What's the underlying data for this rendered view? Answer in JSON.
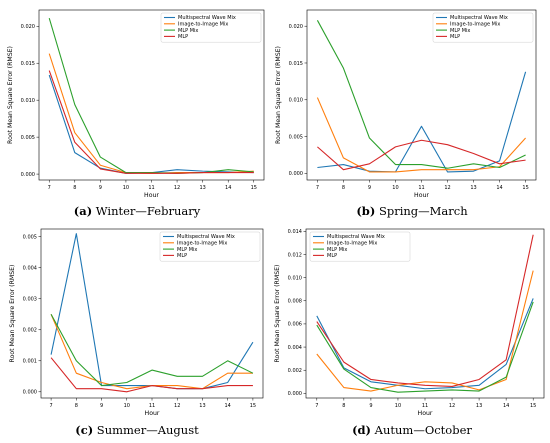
{
  "chart_data": [
    {
      "type": "line",
      "caption_letter": "(a)",
      "caption_text": "Winter—February",
      "xlabel": "Hour",
      "ylabel": "Root Mean Square Error (RMSE)",
      "x": [
        7,
        8,
        9,
        10,
        11,
        12,
        13,
        14,
        15
      ],
      "xlim": [
        6.6,
        15.4
      ],
      "ylim": [
        -0.0008,
        0.0222
      ],
      "yticks": [
        0,
        0.005,
        0.01,
        0.015,
        0.02
      ],
      "ytick_labels": [
        "0.000",
        "0.005",
        "0.010",
        "0.015",
        "0.020"
      ],
      "legend_position": "top-right",
      "series": [
        {
          "name": "Multispectral Wave Mix",
          "color": "#1f77b4",
          "values": [
            0.0134,
            0.0029,
            0.0008,
            0.0001,
            0.0002,
            0.0006,
            0.0004,
            0.0003,
            0.0002
          ]
        },
        {
          "name": "Image-to-Image Mix",
          "color": "#ff7f0e",
          "values": [
            0.0163,
            0.0056,
            0.0012,
            0.0002,
            0.0001,
            0.0002,
            0.0002,
            0.0002,
            0.0004
          ]
        },
        {
          "name": "MLP Mix",
          "color": "#2ca02c",
          "values": [
            0.0211,
            0.0094,
            0.0023,
            0.0002,
            0.0002,
            0.0001,
            0.0002,
            0.0006,
            0.0003
          ]
        },
        {
          "name": "MLP",
          "color": "#d62728",
          "values": [
            0.014,
            0.0043,
            0.0007,
            0.0001,
            0.0001,
            0.0001,
            0.0002,
            0.0002,
            0.0002
          ]
        }
      ]
    },
    {
      "type": "line",
      "caption_letter": "(b)",
      "caption_text": "Spring—March",
      "xlabel": "Hour",
      "ylabel": "Root Mean Square Error (RMSE)",
      "x": [
        7,
        8,
        9,
        10,
        11,
        12,
        13,
        14,
        15
      ],
      "xlim": [
        6.6,
        15.4
      ],
      "ylim": [
        -0.0009,
        0.0222
      ],
      "yticks": [
        0,
        0.005,
        0.01,
        0.015,
        0.02
      ],
      "ytick_labels": [
        "0.000",
        "0.005",
        "0.010",
        "0.015",
        "0.020"
      ],
      "legend_position": "top-right",
      "series": [
        {
          "name": "Multispectral Wave Mix",
          "color": "#1f77b4",
          "values": [
            0.0008,
            0.0012,
            0.0003,
            0.0002,
            0.0064,
            0.0002,
            0.0003,
            0.0017,
            0.0138
          ]
        },
        {
          "name": "Image-to-Image Mix",
          "color": "#ff7f0e",
          "values": [
            0.0103,
            0.0021,
            0.0002,
            0.0002,
            0.0005,
            0.0005,
            0.0005,
            0.0009,
            0.0048
          ]
        },
        {
          "name": "MLP Mix",
          "color": "#2ca02c",
          "values": [
            0.0208,
            0.0143,
            0.0048,
            0.0012,
            0.0012,
            0.0007,
            0.0013,
            0.0008,
            0.0025
          ]
        },
        {
          "name": "MLP",
          "color": "#d62728",
          "values": [
            0.0036,
            0.0005,
            0.0013,
            0.0036,
            0.0045,
            0.0039,
            0.0027,
            0.0013,
            0.0018
          ]
        }
      ]
    },
    {
      "type": "line",
      "caption_letter": "(c)",
      "caption_text": "Summer—August",
      "xlabel": "Hour",
      "ylabel": "Root Mean Square Error (RMSE)",
      "x": [
        7,
        8,
        9,
        10,
        11,
        12,
        13,
        14,
        15
      ],
      "xlim": [
        6.6,
        15.4
      ],
      "ylim": [
        -0.0002,
        0.00525
      ],
      "yticks": [
        0,
        0.001,
        0.002,
        0.003,
        0.004,
        0.005
      ],
      "ytick_labels": [
        "0.000",
        "0.001",
        "0.002",
        "0.003",
        "0.004",
        "0.005"
      ],
      "legend_position": "top-right",
      "series": [
        {
          "name": "Multispectral Wave Mix",
          "color": "#1f77b4",
          "values": [
            0.0012,
            0.0051,
            0.0002,
            0.0002,
            0.0002,
            0.0001,
            0.0001,
            0.0003,
            0.0016
          ]
        },
        {
          "name": "Image-to-Image Mix",
          "color": "#ff7f0e",
          "values": [
            0.0025,
            0.0006,
            0.0003,
            0.0001,
            0.0002,
            0.0002,
            0.0001,
            0.0006,
            0.0006
          ]
        },
        {
          "name": "MLP Mix",
          "color": "#2ca02c",
          "values": [
            0.0025,
            0.001,
            0.0002,
            0.0003,
            0.0007,
            0.0005,
            0.0005,
            0.001,
            0.0006
          ]
        },
        {
          "name": "MLP",
          "color": "#d62728",
          "values": [
            0.0011,
            0.0001,
            0.0001,
            0.0,
            0.0002,
            0.0001,
            0.0001,
            0.0002,
            0.0002
          ]
        }
      ]
    },
    {
      "type": "line",
      "caption_letter": "(d)",
      "caption_text": "Autum—October",
      "xlabel": "Hour",
      "ylabel": "Root Mean Square Error (RMSE)",
      "x": [
        7,
        8,
        9,
        10,
        11,
        12,
        13,
        14,
        15
      ],
      "xlim": [
        6.6,
        15.4
      ],
      "ylim": [
        -0.0004,
        0.0142
      ],
      "yticks": [
        0,
        0.002,
        0.004,
        0.006,
        0.008,
        0.01,
        0.012,
        0.014
      ],
      "ytick_labels": [
        "0.000",
        "0.002",
        "0.004",
        "0.006",
        "0.008",
        "0.010",
        "0.012",
        "0.014"
      ],
      "legend_position": "top-left",
      "series": [
        {
          "name": "Multispectral Wave Mix",
          "color": "#1f77b4",
          "values": [
            0.0067,
            0.0022,
            0.001,
            0.0007,
            0.0004,
            0.0005,
            0.0007,
            0.0025,
            0.0082
          ]
        },
        {
          "name": "Image-to-Image Mix",
          "color": "#ff7f0e",
          "values": [
            0.0034,
            0.0005,
            0.0002,
            0.0007,
            0.001,
            0.0009,
            0.0003,
            0.0012,
            0.0106
          ]
        },
        {
          "name": "MLP Mix",
          "color": "#2ca02c",
          "values": [
            0.0059,
            0.0021,
            0.0005,
            0.0001,
            0.0002,
            0.0003,
            0.0002,
            0.0014,
            0.0079
          ]
        },
        {
          "name": "MLP",
          "color": "#d62728",
          "values": [
            0.0062,
            0.0027,
            0.0012,
            0.0009,
            0.0007,
            0.0006,
            0.0012,
            0.0029,
            0.0137
          ]
        }
      ]
    }
  ]
}
